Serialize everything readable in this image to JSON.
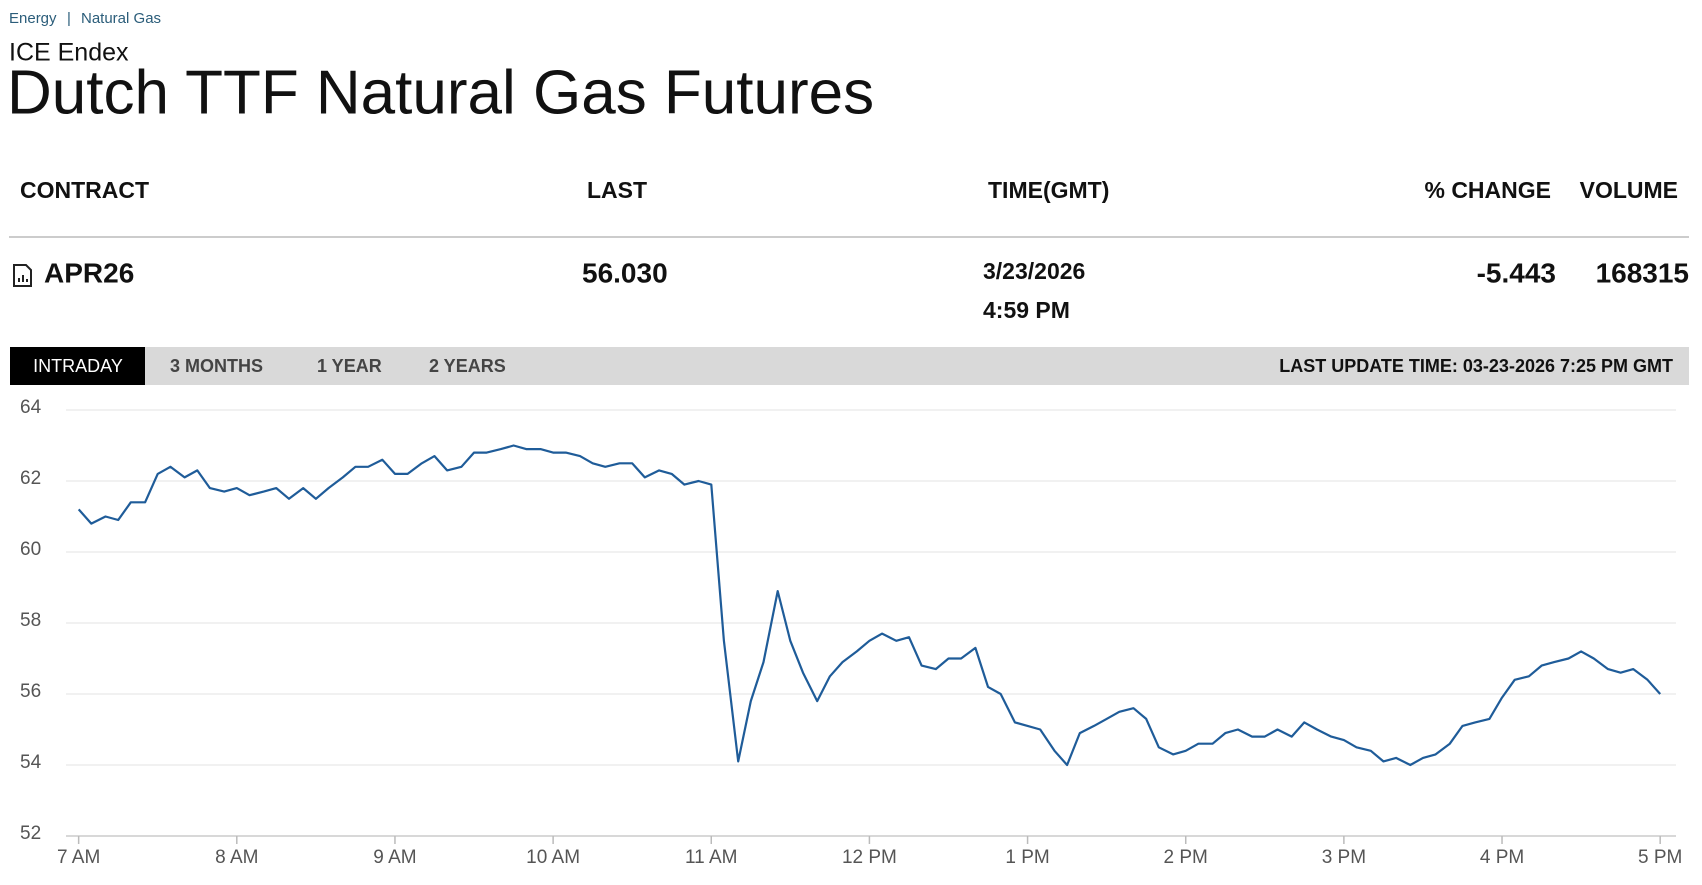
{
  "breadcrumb": [
    "Energy",
    "Natural Gas"
  ],
  "exchange": "ICE Endex",
  "title": "Dutch TTF Natural Gas Futures",
  "table": {
    "headers": [
      "CONTRACT",
      "LAST",
      "TIME(GMT)",
      "% CHANGE",
      "VOLUME"
    ],
    "rows": [
      [
        "APR26",
        "56.030",
        [
          "3/23/2026",
          "4:59 PM"
        ],
        "-5.443",
        "168315"
      ]
    ]
  },
  "tabs": [
    "INTRADAY",
    "3 MONTHS",
    "1 YEAR",
    "2 YEARS"
  ],
  "last_update": "LAST UPDATE TIME: 03-23-2026 7:25 PM GMT",
  "chart_data": {
    "type": "line",
    "color": "#1f5c99",
    "grid": true,
    "x": [
      7.0,
      7.08,
      7.17,
      7.25,
      7.33,
      7.42,
      7.5,
      7.58,
      7.67,
      7.75,
      7.83,
      7.92,
      8.0,
      8.08,
      8.17,
      8.25,
      8.33,
      8.42,
      8.5,
      8.58,
      8.67,
      8.75,
      8.83,
      8.92,
      9.0,
      9.08,
      9.17,
      9.25,
      9.33,
      9.42,
      9.5,
      9.58,
      9.67,
      9.75,
      9.83,
      9.92,
      10.0,
      10.08,
      10.17,
      10.25,
      10.33,
      10.42,
      10.5,
      10.58,
      10.67,
      10.75,
      10.83,
      10.92,
      11.0,
      11.08,
      11.17,
      11.25,
      11.33,
      11.42,
      11.5,
      11.58,
      11.67,
      11.75,
      11.83,
      11.92,
      12.0,
      12.08,
      12.17,
      12.25,
      12.33,
      12.42,
      12.5,
      12.58,
      12.67,
      12.75,
      12.83,
      12.92,
      13.0,
      13.08,
      13.17,
      13.25,
      13.33,
      13.42,
      13.5,
      13.58,
      13.67,
      13.75,
      13.83,
      13.92,
      14.0,
      14.08,
      14.17,
      14.25,
      14.33,
      14.42,
      14.5,
      14.58,
      14.67,
      14.75,
      14.83,
      14.92,
      15.0,
      15.08,
      15.17,
      15.25,
      15.33,
      15.42,
      15.5,
      15.58,
      15.67,
      15.75,
      15.83,
      15.92,
      16.0,
      16.08,
      16.17,
      16.25,
      16.33,
      16.42,
      16.5,
      16.58,
      16.67,
      16.75,
      16.83,
      16.92,
      17.0
    ],
    "values": [
      61.2,
      60.8,
      61.0,
      60.9,
      61.4,
      61.4,
      62.2,
      62.4,
      62.1,
      62.3,
      61.8,
      61.7,
      61.8,
      61.6,
      61.7,
      61.8,
      61.5,
      61.8,
      61.5,
      61.8,
      62.1,
      62.4,
      62.4,
      62.6,
      62.2,
      62.2,
      62.5,
      62.7,
      62.3,
      62.4,
      62.8,
      62.8,
      62.9,
      63.0,
      62.9,
      62.9,
      62.8,
      62.8,
      62.7,
      62.5,
      62.4,
      62.5,
      62.5,
      62.1,
      62.3,
      62.2,
      61.9,
      62.0,
      61.9,
      57.5,
      54.1,
      55.8,
      56.9,
      58.9,
      57.5,
      56.6,
      55.8,
      56.5,
      56.9,
      57.2,
      57.5,
      57.7,
      57.5,
      57.6,
      56.8,
      56.7,
      57.0,
      57.0,
      57.3,
      56.2,
      56.0,
      55.2,
      55.1,
      55.0,
      54.4,
      54.0,
      54.9,
      55.1,
      55.3,
      55.5,
      55.6,
      55.3,
      54.5,
      54.3,
      54.4,
      54.6,
      54.6,
      54.9,
      55.0,
      54.8,
      54.8,
      55.0,
      54.8,
      55.2,
      55.0,
      54.8,
      54.7,
      54.5,
      54.4,
      54.1,
      54.2,
      54.0,
      54.2,
      54.3,
      54.6,
      55.1,
      55.2,
      55.3,
      55.9,
      56.4,
      56.5,
      56.8,
      56.9,
      57.0,
      57.2,
      57.0,
      56.7,
      56.6,
      56.7,
      56.4,
      56.0
    ],
    "xlim": [
      6.92,
      17.1
    ],
    "xticks": [
      {
        "value": 7,
        "label": "7 AM"
      },
      {
        "value": 8,
        "label": "8 AM"
      },
      {
        "value": 9,
        "label": "9 AM"
      },
      {
        "value": 10,
        "label": "10 AM"
      },
      {
        "value": 11,
        "label": "11 AM"
      },
      {
        "value": 12,
        "label": "12 PM"
      },
      {
        "value": 13,
        "label": "1 PM"
      },
      {
        "value": 14,
        "label": "2 PM"
      },
      {
        "value": 15,
        "label": "3 PM"
      },
      {
        "value": 16,
        "label": "4 PM"
      },
      {
        "value": 17,
        "label": "5 PM"
      }
    ],
    "ylim": [
      52,
      64
    ],
    "yticks": [
      52,
      54,
      56,
      58,
      60,
      62,
      64
    ]
  }
}
